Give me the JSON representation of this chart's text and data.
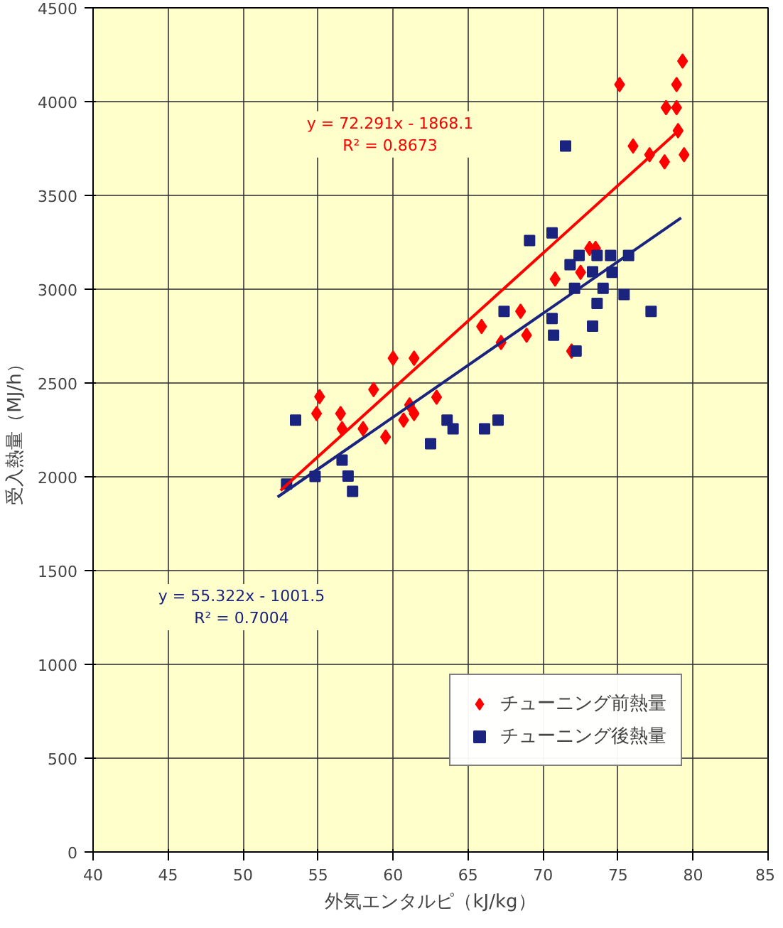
{
  "chart_data": {
    "type": "scatter",
    "xlabel": "外気エンタルピ（kJ/kg）",
    "ylabel": "受入熱量（MJ/h）",
    "xlim": [
      40,
      85
    ],
    "xticks": [
      40,
      45,
      50,
      55,
      60,
      65,
      70,
      75,
      80,
      85
    ],
    "ylim": [
      0,
      4500
    ],
    "yticks": [
      0,
      500,
      1000,
      1500,
      2000,
      2500,
      3000,
      3500,
      4000,
      4500
    ],
    "grid": true,
    "legend": "bottom right",
    "series": [
      {
        "name": "チューニング前熱量",
        "color": "#ff0000",
        "marker": "diamond",
        "x": [
          60.0,
          61.4,
          58.7,
          55.1,
          54.9,
          56.5,
          56.6,
          58.0,
          59.5,
          61.1,
          60.7,
          61.4,
          62.9,
          65.9,
          68.5,
          67.2,
          68.9,
          79.3,
          75.1,
          78.9,
          78.2,
          78.9,
          79.0,
          76.0,
          77.1,
          78.1,
          79.4,
          73.1,
          73.5,
          72.5,
          70.8,
          71.9
        ],
        "values": [
          2632,
          2632,
          2465,
          2427,
          2337,
          2337,
          2256,
          2256,
          2212,
          2383,
          2302,
          2337,
          2424,
          2801,
          2882,
          2716,
          2755,
          4216,
          4091,
          4091,
          3968,
          3968,
          3845,
          3763,
          3717,
          3679,
          3717,
          3218,
          3218,
          3090,
          3054,
          2670
        ]
      },
      {
        "name": "チューニング後熱量",
        "color": "#1a237e",
        "marker": "square",
        "x": [
          52.9,
          53.5,
          54.8,
          56.6,
          57.0,
          57.3,
          62.5,
          63.6,
          64.0,
          66.1,
          67.0,
          67.4,
          71.5,
          69.1,
          70.6,
          72.4,
          71.8,
          73.6,
          74.5,
          75.7,
          73.3,
          74.6,
          72.1,
          74.0,
          75.4,
          73.6,
          77.2,
          70.6,
          73.3,
          70.7,
          72.2
        ],
        "values": [
          1961,
          2302,
          2002,
          2089,
          2004,
          1922,
          2176,
          2302,
          2256,
          2256,
          2302,
          2882,
          3763,
          3259,
          3300,
          3180,
          3131,
          3180,
          3180,
          3180,
          3093,
          3090,
          3005,
          3005,
          2972,
          2924,
          2882,
          2844,
          2803,
          2755,
          2670
        ]
      },
      {
        "type": "line",
        "color": "#ff0000",
        "marker": "none",
        "x": [
          52.5,
          79.0
        ],
        "values": [
          1927,
          3843
        ]
      },
      {
        "type": "line",
        "color": "#1a237e",
        "marker": "none",
        "x": [
          52.3,
          79.2
        ],
        "values": [
          1892,
          3380
        ]
      }
    ],
    "annotations": [
      "y = 72.291x - 1868.1\nR² = 0.8673",
      "y = 55.322x - 1001.5\nR² = 0.7004"
    ]
  }
}
